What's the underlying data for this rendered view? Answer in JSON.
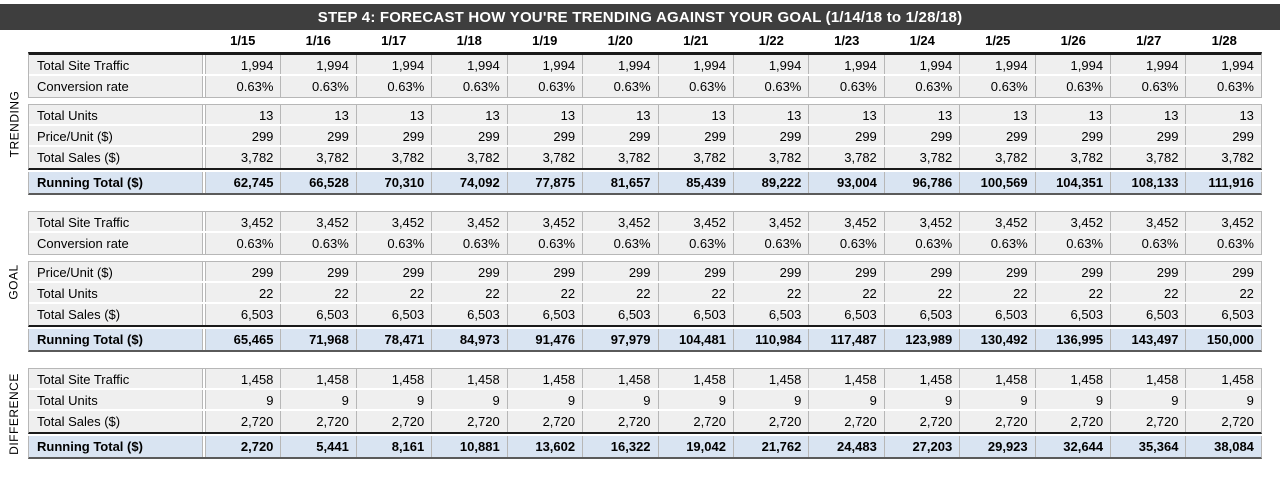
{
  "header": {
    "title": "STEP 4: FORECAST HOW YOU'RE TRENDING AGAINST YOUR GOAL (1/14/18 to 1/28/18)"
  },
  "columns": [
    "1/15",
    "1/16",
    "1/17",
    "1/18",
    "1/19",
    "1/20",
    "1/21",
    "1/22",
    "1/23",
    "1/24",
    "1/25",
    "1/26",
    "1/27",
    "1/28"
  ],
  "sections": [
    {
      "label": "TRENDING",
      "blocks": [
        {
          "rows": [
            {
              "label": "Total Site Traffic",
              "values": [
                "1,994",
                "1,994",
                "1,994",
                "1,994",
                "1,994",
                "1,994",
                "1,994",
                "1,994",
                "1,994",
                "1,994",
                "1,994",
                "1,994",
                "1,994",
                "1,994"
              ]
            },
            {
              "label": "Conversion rate",
              "values": [
                "0.63%",
                "0.63%",
                "0.63%",
                "0.63%",
                "0.63%",
                "0.63%",
                "0.63%",
                "0.63%",
                "0.63%",
                "0.63%",
                "0.63%",
                "0.63%",
                "0.63%",
                "0.63%"
              ]
            }
          ]
        },
        {
          "rows": [
            {
              "label": "Total Units",
              "values": [
                "13",
                "13",
                "13",
                "13",
                "13",
                "13",
                "13",
                "13",
                "13",
                "13",
                "13",
                "13",
                "13",
                "13"
              ]
            },
            {
              "label": "Price/Unit ($)",
              "values": [
                "299",
                "299",
                "299",
                "299",
                "299",
                "299",
                "299",
                "299",
                "299",
                "299",
                "299",
                "299",
                "299",
                "299"
              ]
            },
            {
              "label": "Total Sales ($)",
              "values": [
                "3,782",
                "3,782",
                "3,782",
                "3,782",
                "3,782",
                "3,782",
                "3,782",
                "3,782",
                "3,782",
                "3,782",
                "3,782",
                "3,782",
                "3,782",
                "3,782"
              ]
            }
          ]
        }
      ],
      "running_total": {
        "label": "Running Total ($)",
        "values": [
          "62,745",
          "66,528",
          "70,310",
          "74,092",
          "77,875",
          "81,657",
          "85,439",
          "89,222",
          "93,004",
          "96,786",
          "100,569",
          "104,351",
          "108,133",
          "111,916"
        ]
      }
    },
    {
      "label": "GOAL",
      "blocks": [
        {
          "rows": [
            {
              "label": "Total Site Traffic",
              "values": [
                "3,452",
                "3,452",
                "3,452",
                "3,452",
                "3,452",
                "3,452",
                "3,452",
                "3,452",
                "3,452",
                "3,452",
                "3,452",
                "3,452",
                "3,452",
                "3,452"
              ]
            },
            {
              "label": "Conversion rate",
              "values": [
                "0.63%",
                "0.63%",
                "0.63%",
                "0.63%",
                "0.63%",
                "0.63%",
                "0.63%",
                "0.63%",
                "0.63%",
                "0.63%",
                "0.63%",
                "0.63%",
                "0.63%",
                "0.63%"
              ]
            }
          ]
        },
        {
          "rows": [
            {
              "label": "Price/Unit ($)",
              "values": [
                "299",
                "299",
                "299",
                "299",
                "299",
                "299",
                "299",
                "299",
                "299",
                "299",
                "299",
                "299",
                "299",
                "299"
              ]
            },
            {
              "label": "Total Units",
              "values": [
                "22",
                "22",
                "22",
                "22",
                "22",
                "22",
                "22",
                "22",
                "22",
                "22",
                "22",
                "22",
                "22",
                "22"
              ]
            },
            {
              "label": "Total Sales ($)",
              "values": [
                "6,503",
                "6,503",
                "6,503",
                "6,503",
                "6,503",
                "6,503",
                "6,503",
                "6,503",
                "6,503",
                "6,503",
                "6,503",
                "6,503",
                "6,503",
                "6,503"
              ]
            }
          ]
        }
      ],
      "running_total": {
        "label": "Running Total ($)",
        "values": [
          "65,465",
          "71,968",
          "78,471",
          "84,973",
          "91,476",
          "97,979",
          "104,481",
          "110,984",
          "117,487",
          "123,989",
          "130,492",
          "136,995",
          "143,497",
          "150,000"
        ]
      }
    },
    {
      "label": "DIFFERENCE",
      "blocks": [
        {
          "rows": [
            {
              "label": "Total Site Traffic",
              "values": [
                "1,458",
                "1,458",
                "1,458",
                "1,458",
                "1,458",
                "1,458",
                "1,458",
                "1,458",
                "1,458",
                "1,458",
                "1,458",
                "1,458",
                "1,458",
                "1,458"
              ]
            },
            {
              "label": "Total Units",
              "values": [
                "9",
                "9",
                "9",
                "9",
                "9",
                "9",
                "9",
                "9",
                "9",
                "9",
                "9",
                "9",
                "9",
                "9"
              ]
            },
            {
              "label": "Total Sales ($)",
              "values": [
                "2,720",
                "2,720",
                "2,720",
                "2,720",
                "2,720",
                "2,720",
                "2,720",
                "2,720",
                "2,720",
                "2,720",
                "2,720",
                "2,720",
                "2,720",
                "2,720"
              ]
            }
          ]
        }
      ],
      "running_total": {
        "label": "Running Total ($)",
        "values": [
          "2,720",
          "5,441",
          "8,161",
          "10,881",
          "13,602",
          "16,322",
          "19,042",
          "21,762",
          "24,483",
          "27,203",
          "29,923",
          "32,644",
          "35,364",
          "38,084"
        ]
      }
    }
  ],
  "colors": {
    "title_bar": "#3e3e3e",
    "title_text": "#ffffff",
    "cell_background": "#efefef",
    "running_total_background": "#d9e4f2",
    "cell_border": "#b7b7b7",
    "dark_border": "#1a1a1a"
  }
}
